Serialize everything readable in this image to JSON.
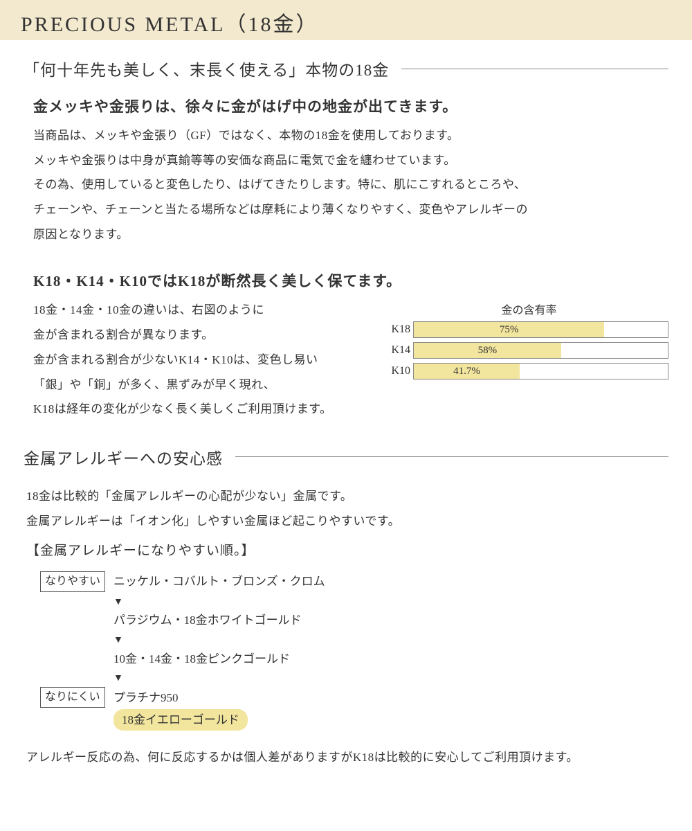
{
  "banner": {
    "text": "PRECIOUS METAL（18金）"
  },
  "section1": {
    "title": "「何十年先も美しく、末長く使える」本物の18金",
    "sub1": {
      "head": "金メッキや金張りは、徐々に金がはげ中の地金が出てきます。",
      "lines": [
        "当商品は、メッキや金張り（GF）ではなく、本物の18金を使用しております。",
        "メッキや金張りは中身が真鍮等等の安価な商品に電気で金を纏わせています。",
        "その為、使用していると変色したり、はげてきたりします。特に、肌にこすれるところや、",
        "チェーンや、チェーンと当たる場所などは摩耗により薄くなりやすく、変色やアレルギーの",
        "原因となります。"
      ]
    },
    "sub2": {
      "head": "K18・K14・K10ではK18が断然長く美しく保てます。",
      "left_lines": [
        "18金・14金・10金の違いは、右図のように",
        "金が含まれる割合が異なります。",
        "金が含まれる割合が少ないK14・K10は、変色し易い",
        "「銀」や「銅」が多く、黒ずみが早く現れ、",
        "K18は経年の変化が少なく長く美しくご利用頂けます。"
      ]
    },
    "chart": {
      "title": "金の含有率",
      "bars": [
        {
          "label": "K18",
          "value": 75,
          "text": "75%"
        },
        {
          "label": "K14",
          "value": 58,
          "text": "58%"
        },
        {
          "label": "K10",
          "value": 41.7,
          "text": "41.7%"
        }
      ],
      "bar_fill_color": "#f2e59e",
      "bar_border_color": "#888888",
      "max": 100
    }
  },
  "section2": {
    "title": "金属アレルギーへの安心感",
    "intro_lines": [
      "18金は比較的「金属アレルギーの心配が少ない」金属です。",
      "金属アレルギーは「イオン化」しやすい金属ほど起こりやすいです。"
    ],
    "list_heading": "【金属アレルギーになりやすい順。】",
    "tags": {
      "easy": "なりやすい",
      "hard": "なりにくい"
    },
    "arrow": "▼",
    "items": [
      "ニッケル・コバルト・ブロンズ・クロム",
      "パラジウム・18金ホワイトゴールド",
      "10金・14金・18金ピンクゴールド",
      "プラチナ950"
    ],
    "highlight_item": "18金イエローゴールド",
    "footnote": "アレルギー反応の為、何に反応するかは個人差がありますがK18は比較的に安心してご利用頂けます。"
  }
}
